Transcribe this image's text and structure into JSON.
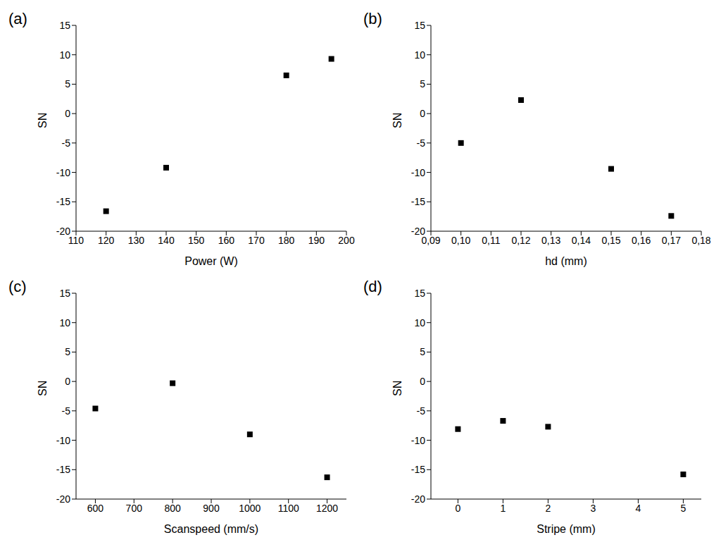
{
  "chart_data": [
    {
      "type": "scatter",
      "title": "(a)",
      "xlabel": "Power (W)",
      "ylabel": "SN",
      "x": [
        120,
        140,
        180,
        195
      ],
      "values": [
        -16.6,
        -9.2,
        6.5,
        9.3
      ],
      "color": "#000000",
      "marker": "square",
      "xlim": [
        110,
        200
      ],
      "xticks": [
        110,
        120,
        130,
        140,
        150,
        160,
        170,
        180,
        190,
        200
      ],
      "ylim": [
        -20,
        15
      ],
      "yticks": [
        -20,
        -15,
        -10,
        -5,
        0,
        5,
        10,
        15
      ]
    },
    {
      "type": "scatter",
      "title": "(b)",
      "xlabel": "hd (mm)",
      "ylabel": "SN",
      "x": [
        0.1,
        0.12,
        0.15,
        0.17
      ],
      "values": [
        -5.0,
        2.3,
        -9.4,
        -17.4
      ],
      "color": "#000000",
      "marker": "square",
      "xlim": [
        0.09,
        0.18
      ],
      "xticks": [
        {
          "value": 0.09,
          "label": "0,09"
        },
        {
          "value": 0.1,
          "label": "0,10"
        },
        {
          "value": 0.11,
          "label": "0,11"
        },
        {
          "value": 0.12,
          "label": "0,12"
        },
        {
          "value": 0.13,
          "label": "0,13"
        },
        {
          "value": 0.14,
          "label": "0,14"
        },
        {
          "value": 0.15,
          "label": "0,15"
        },
        {
          "value": 0.16,
          "label": "0,16"
        },
        {
          "value": 0.17,
          "label": "0,17"
        },
        {
          "value": 0.18,
          "label": "0,18"
        }
      ],
      "ylim": [
        -20,
        15
      ],
      "yticks": [
        -20,
        -15,
        -10,
        -5,
        0,
        5,
        10,
        15
      ]
    },
    {
      "type": "scatter",
      "title": "(c)",
      "xlabel": "Scanspeed (mm/s)",
      "ylabel": "SN",
      "x": [
        600,
        800,
        1000,
        1200
      ],
      "values": [
        -4.6,
        -0.3,
        -9.0,
        -16.3
      ],
      "color": "#000000",
      "marker": "square",
      "xlim": [
        550,
        1250
      ],
      "xticks": [
        600,
        700,
        800,
        900,
        1000,
        1100,
        1200
      ],
      "ylim": [
        -20,
        15
      ],
      "yticks": [
        -20,
        -15,
        -10,
        -5,
        0,
        5,
        10,
        15
      ]
    },
    {
      "type": "scatter",
      "title": "(d)",
      "xlabel": "Stripe (mm)",
      "ylabel": "SN",
      "x": [
        0,
        1,
        2,
        5
      ],
      "values": [
        -8.1,
        -6.7,
        -7.7,
        -15.8
      ],
      "color": "#000000",
      "marker": "square",
      "xlim": [
        -0.6,
        5.4
      ],
      "xticks": [
        0,
        1,
        2,
        3,
        4,
        5
      ],
      "ylim": [
        -20,
        15
      ],
      "yticks": [
        -20,
        -15,
        -10,
        -5,
        0,
        5,
        10,
        15
      ]
    }
  ]
}
